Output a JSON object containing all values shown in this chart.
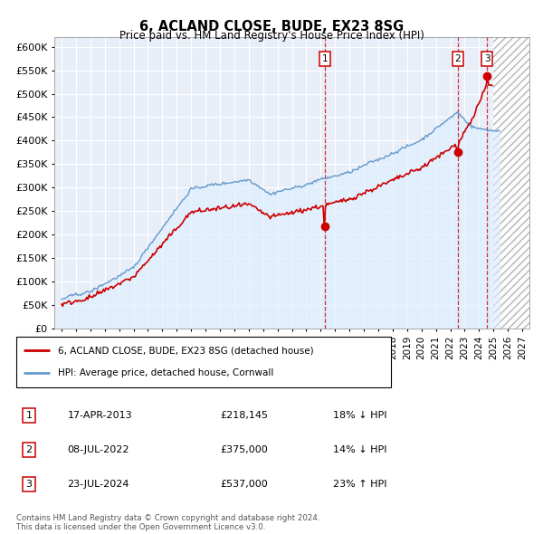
{
  "title": "6, ACLAND CLOSE, BUDE, EX23 8SG",
  "subtitle": "Price paid vs. HM Land Registry's House Price Index (HPI)",
  "ylim": [
    0,
    620000
  ],
  "yticks": [
    0,
    50000,
    100000,
    150000,
    200000,
    250000,
    300000,
    350000,
    400000,
    450000,
    500000,
    550000,
    600000
  ],
  "ytick_labels": [
    "£0",
    "£50K",
    "£100K",
    "£150K",
    "£200K",
    "£250K",
    "£300K",
    "£350K",
    "£400K",
    "£450K",
    "£500K",
    "£550K",
    "£600K"
  ],
  "xlim_start": 1994.5,
  "xlim_end": 2027.5,
  "hatch_start": 2025.0,
  "transactions": [
    {
      "num": 1,
      "year": 2013.29,
      "price": 218145,
      "label": "17-APR-2013",
      "price_str": "£218,145",
      "pct_str": "18% ↓ HPI"
    },
    {
      "num": 2,
      "year": 2022.52,
      "price": 375000,
      "label": "08-JUL-2022",
      "price_str": "£375,000",
      "pct_str": "14% ↓ HPI"
    },
    {
      "num": 3,
      "year": 2024.56,
      "price": 537000,
      "label": "23-JUL-2024",
      "price_str": "£537,000",
      "pct_str": "23% ↑ HPI"
    }
  ],
  "legend_label_red": "6, ACLAND CLOSE, BUDE, EX23 8SG (detached house)",
  "legend_label_blue": "HPI: Average price, detached house, Cornwall",
  "footer1": "Contains HM Land Registry data © Crown copyright and database right 2024.",
  "footer2": "This data is licensed under the Open Government Licence v3.0.",
  "plot_bg_color": "#e8eef8",
  "grid_color": "#ffffff",
  "red_color": "#cc0000",
  "blue_color": "#6699cc",
  "fill_color": "#ddeeff"
}
